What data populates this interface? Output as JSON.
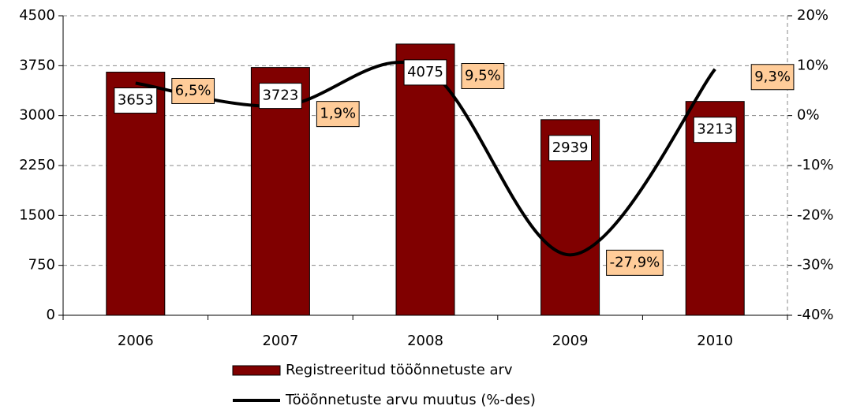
{
  "chart_data": {
    "type": "bar",
    "categories": [
      "2006",
      "2007",
      "2008",
      "2009",
      "2010"
    ],
    "series": [
      {
        "name": "Registreeritud tööõnnetuste arv",
        "type": "bar",
        "color": "#800000",
        "values": [
          3653,
          3723,
          4075,
          2939,
          3213
        ]
      },
      {
        "name": "Tööõnnetuste arvu muutus (%-des)",
        "type": "line",
        "axis": "y2",
        "color": "#000000",
        "values": [
          6.5,
          1.9,
          9.5,
          -27.9,
          9.3
        ],
        "value_labels": [
          "6,5%",
          "1,9%",
          "9,5%",
          "-27,9%",
          "9,3%"
        ]
      }
    ],
    "ylim": [
      0,
      4500
    ],
    "yticks": [
      0,
      750,
      1500,
      2250,
      3000,
      3750,
      4500
    ],
    "y2lim": [
      -40,
      20
    ],
    "y2ticks": [
      {
        "value": -40,
        "label": "-40%"
      },
      {
        "value": -30,
        "label": "-30%"
      },
      {
        "value": -20,
        "label": "-20%"
      },
      {
        "value": -10,
        "label": "-10%"
      },
      {
        "value": 0,
        "label": "0%"
      },
      {
        "value": 10,
        "label": "10%"
      },
      {
        "value": 20,
        "label": "20%"
      }
    ],
    "grid": true
  }
}
